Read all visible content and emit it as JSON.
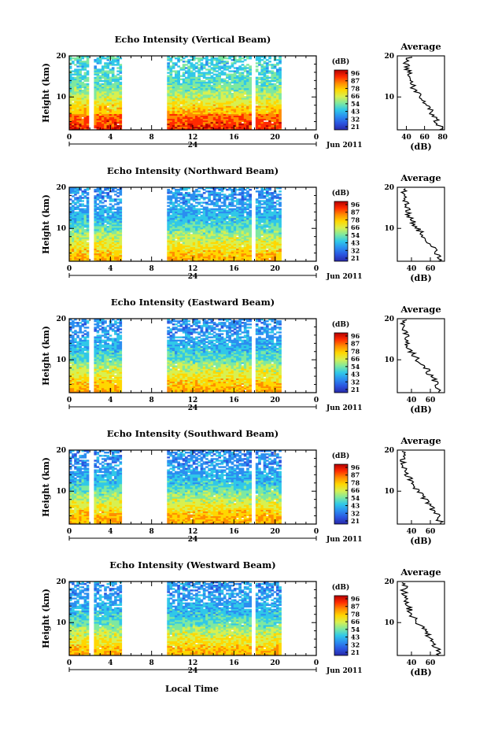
{
  "figure": {
    "xlabel": "Local Time",
    "date_label": "Jun 2011",
    "day_marker": "24",
    "colorbar_unit": "(dB)",
    "colorbar_ticks": [
      "96",
      "87",
      "78",
      "66",
      "54",
      "43",
      "32",
      "21"
    ],
    "colorbar_colors": [
      "#b40000",
      "#ff2a00",
      "#ff8c00",
      "#ffd700",
      "#d8f050",
      "#7ee8a0",
      "#30c8e8",
      "#2b8ef0",
      "#2a55e0",
      "#2828a8"
    ]
  },
  "chart_data": [
    {
      "type": "heatmap",
      "title": "Echo Intensity (Vertical Beam)",
      "xlabel": "Local Time",
      "ylabel": "Height (km)",
      "xlim": [
        0,
        24
      ],
      "ylim": [
        2,
        20
      ],
      "xticks": [
        "0",
        "4",
        "8",
        "12",
        "16",
        "20",
        "0"
      ],
      "yticks": [
        "20",
        "10"
      ],
      "colorbar": {
        "label": "(dB)",
        "ticks": [
          "96",
          "87",
          "78",
          "66",
          "54",
          "43",
          "32",
          "21"
        ]
      },
      "data_intervals_hours": [
        [
          0.0,
          1.9
        ],
        [
          2.4,
          5.1
        ],
        [
          9.5,
          17.7
        ],
        [
          18.1,
          20.6
        ]
      ],
      "average_profile": {
        "title": "Average",
        "xlabel": "(dB)",
        "xticks": [
          "40",
          "60",
          "80"
        ],
        "xlim": [
          30,
          82
        ],
        "yticks": [
          "20",
          "10"
        ],
        "ylim": [
          2,
          20
        ],
        "height_km": [
          2,
          4,
          6,
          8,
          10,
          12,
          14,
          16,
          18,
          20
        ],
        "mean_db": [
          78,
          74,
          68,
          63,
          56,
          48,
          45,
          42,
          40,
          44
        ]
      }
    },
    {
      "type": "heatmap",
      "title": "Echo Intensity (Northward Beam)",
      "xlabel": "Local Time",
      "ylabel": "Height (km)",
      "xlim": [
        0,
        24
      ],
      "ylim": [
        2,
        20
      ],
      "xticks": [
        "0",
        "4",
        "8",
        "12",
        "16",
        "20",
        "0"
      ],
      "yticks": [
        "20",
        "10"
      ],
      "colorbar": {
        "label": "(dB)",
        "ticks": [
          "96",
          "87",
          "78",
          "66",
          "54",
          "43",
          "32",
          "21"
        ]
      },
      "data_intervals_hours": [
        [
          0.0,
          1.9
        ],
        [
          2.4,
          5.1
        ],
        [
          9.5,
          17.7
        ],
        [
          18.1,
          20.6
        ]
      ],
      "average_profile": {
        "title": "Average",
        "xlabel": "(dB)",
        "xticks": [
          "40",
          "60"
        ],
        "xlim": [
          25,
          75
        ],
        "yticks": [
          "20",
          "10"
        ],
        "ylim": [
          2,
          20
        ],
        "height_km": [
          2,
          4,
          6,
          8,
          10,
          12,
          14,
          16,
          18,
          20
        ],
        "mean_db": [
          70,
          66,
          60,
          54,
          46,
          40,
          36,
          34,
          31,
          33
        ]
      }
    },
    {
      "type": "heatmap",
      "title": "Echo Intensity (Eastward Beam)",
      "xlabel": "Local Time",
      "ylabel": "Height (km)",
      "xlim": [
        0,
        24
      ],
      "ylim": [
        2,
        20
      ],
      "xticks": [
        "0",
        "4",
        "8",
        "12",
        "16",
        "20",
        "0"
      ],
      "yticks": [
        "20",
        "10"
      ],
      "colorbar": {
        "label": "(dB)",
        "ticks": [
          "96",
          "87",
          "78",
          "66",
          "54",
          "43",
          "32",
          "21"
        ]
      },
      "data_intervals_hours": [
        [
          0.0,
          1.9
        ],
        [
          2.4,
          5.1
        ],
        [
          9.5,
          17.7
        ],
        [
          18.1,
          20.6
        ]
      ],
      "average_profile": {
        "title": "Average",
        "xlabel": "(dB)",
        "xticks": [
          "40",
          "60"
        ],
        "xlim": [
          25,
          75
        ],
        "yticks": [
          "20",
          "10"
        ],
        "ylim": [
          2,
          20
        ],
        "height_km": [
          2,
          4,
          6,
          8,
          10,
          12,
          14,
          16,
          18,
          20
        ],
        "mean_db": [
          71,
          67,
          61,
          55,
          46,
          40,
          36,
          34,
          31,
          32
        ]
      }
    },
    {
      "type": "heatmap",
      "title": "Echo Intensity (Southward Beam)",
      "xlabel": "Local Time",
      "ylabel": "Height (km)",
      "xlim": [
        0,
        24
      ],
      "ylim": [
        2,
        20
      ],
      "xticks": [
        "0",
        "4",
        "8",
        "12",
        "16",
        "20",
        "0"
      ],
      "yticks": [
        "20",
        "10"
      ],
      "colorbar": {
        "label": "(dB)",
        "ticks": [
          "96",
          "87",
          "78",
          "66",
          "54",
          "43",
          "32",
          "21"
        ]
      },
      "data_intervals_hours": [
        [
          0.0,
          1.9
        ],
        [
          2.4,
          5.1
        ],
        [
          9.5,
          17.7
        ],
        [
          18.1,
          20.6
        ]
      ],
      "average_profile": {
        "title": "Average",
        "xlabel": "(dB)",
        "xticks": [
          "40",
          "60"
        ],
        "xlim": [
          25,
          75
        ],
        "yticks": [
          "20",
          "10"
        ],
        "ylim": [
          2,
          20
        ],
        "height_km": [
          2,
          4,
          6,
          8,
          10,
          12,
          14,
          16,
          18,
          20
        ],
        "mean_db": [
          71,
          68,
          61,
          55,
          47,
          40,
          36,
          33,
          31,
          32
        ]
      }
    },
    {
      "type": "heatmap",
      "title": "Echo Intensity (Westward Beam)",
      "xlabel": "Local Time",
      "ylabel": "Height (km)",
      "xlim": [
        0,
        24
      ],
      "ylim": [
        2,
        20
      ],
      "xticks": [
        "0",
        "4",
        "8",
        "12",
        "16",
        "20",
        "0"
      ],
      "yticks": [
        "20",
        "10"
      ],
      "colorbar": {
        "label": "(dB)",
        "ticks": [
          "96",
          "87",
          "78",
          "66",
          "54",
          "43",
          "32",
          "21"
        ]
      },
      "data_intervals_hours": [
        [
          0.0,
          1.9
        ],
        [
          2.4,
          5.1
        ],
        [
          9.5,
          17.7
        ],
        [
          18.1,
          20.6
        ]
      ],
      "average_profile": {
        "title": "Average",
        "xlabel": "(dB)",
        "xticks": [
          "40",
          "60"
        ],
        "xlim": [
          25,
          75
        ],
        "yticks": [
          "20",
          "10"
        ],
        "ylim": [
          2,
          20
        ],
        "height_km": [
          2,
          4,
          6,
          8,
          10,
          12,
          14,
          16,
          18,
          20
        ],
        "mean_db": [
          70,
          66,
          60,
          54,
          46,
          40,
          36,
          34,
          32,
          33
        ]
      }
    }
  ]
}
